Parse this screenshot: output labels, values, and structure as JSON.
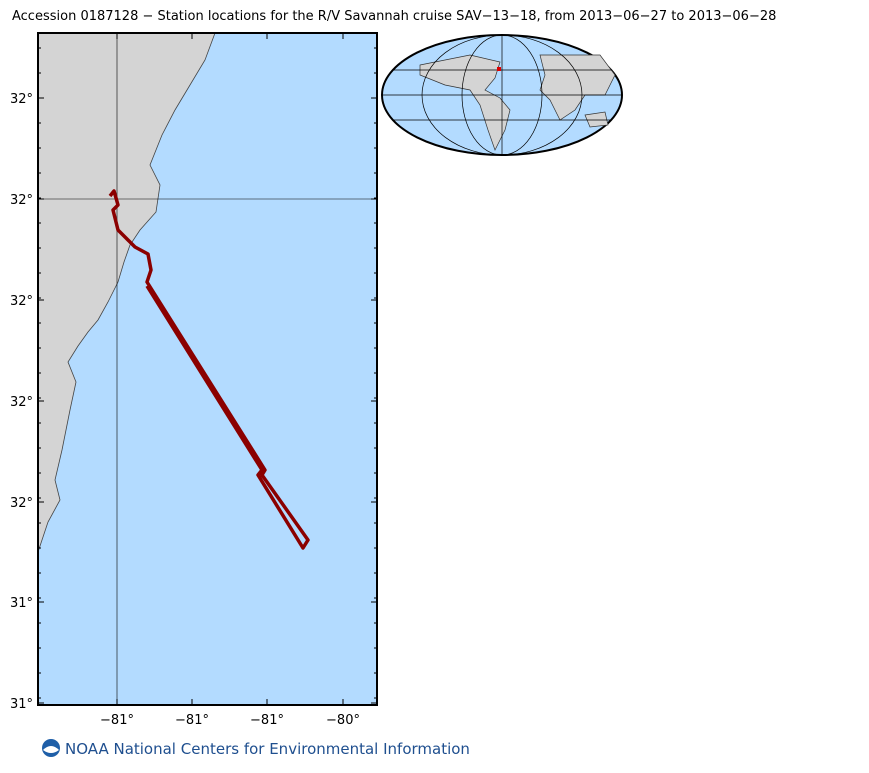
{
  "header": {
    "title": "Accession 0187128 − Station locations for the R/V Savannah cruise SAV−13−18, from 2013−06−27 to 2013−06−28"
  },
  "map": {
    "y_tick_labels": [
      "32°",
      "32°",
      "32°",
      "32°",
      "32°",
      "31°",
      "31°"
    ],
    "x_tick_labels": [
      "−81°",
      "−81°",
      "−81°",
      "−80°"
    ]
  },
  "footer": {
    "text": "NOAA National Centers for Environmental Information"
  }
}
